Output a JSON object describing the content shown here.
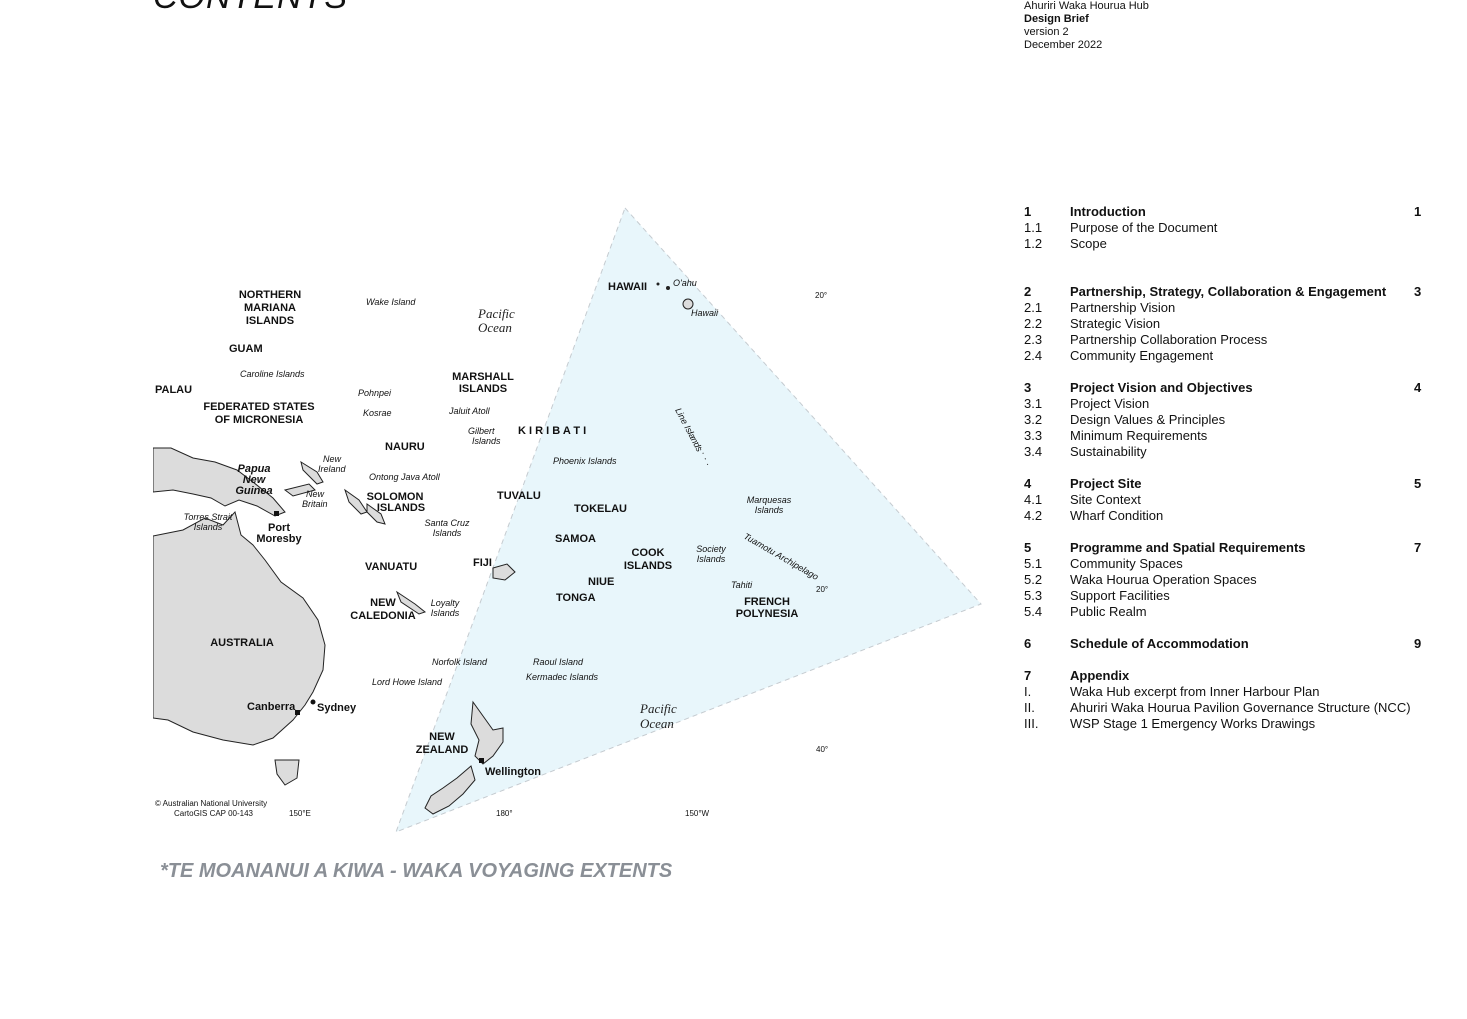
{
  "page": {
    "title": "CONTENTS",
    "caption": "*TE MOANANUI A KIWA - WAKA VOYAGING EXTENTS"
  },
  "doc_meta": {
    "project": "Ahuriri Waka Hourua Hub",
    "doc_type": "Design Brief",
    "version": "version 2",
    "date": "December 2022"
  },
  "toc": {
    "s1": {
      "num": "1",
      "title": "Introduction",
      "page": "1",
      "items": [
        {
          "num": "1.1",
          "label": "Purpose of the Document"
        },
        {
          "num": "1.2",
          "label": "Scope"
        }
      ]
    },
    "s2": {
      "num": "2",
      "title": "Partnership, Strategy, Collaboration & Engagement",
      "page": "3",
      "items": [
        {
          "num": "2.1",
          "label": "Partnership Vision"
        },
        {
          "num": "2.2",
          "label": "Strategic Vision"
        },
        {
          "num": "2.3",
          "label": "Partnership Collaboration Process"
        },
        {
          "num": "2.4",
          "label": "Community Engagement"
        }
      ]
    },
    "s3": {
      "num": "3",
      "title": "Project Vision and Objectives",
      "page": "4",
      "items": [
        {
          "num": "3.1",
          "label": "Project Vision"
        },
        {
          "num": "3.2",
          "label": "Design Values & Principles"
        },
        {
          "num": "3.3",
          "label": "Minimum Requirements"
        },
        {
          "num": "3.4",
          "label": "Sustainability"
        }
      ]
    },
    "s4": {
      "num": "4",
      "title": "Project Site",
      "page": "5",
      "items": [
        {
          "num": "4.1",
          "label": "Site Context"
        },
        {
          "num": "4.2",
          "label": "Wharf Condition"
        }
      ]
    },
    "s5": {
      "num": "5",
      "title": "Programme and Spatial Requirements",
      "page": "7",
      "items": [
        {
          "num": "5.1",
          "label": "Community Spaces"
        },
        {
          "num": "5.2",
          "label": "Waka Hourua Operation Spaces"
        },
        {
          "num": "5.3",
          "label": "Support Facilities"
        },
        {
          "num": "5.4",
          "label": "Public Realm"
        }
      ]
    },
    "s6": {
      "num": "6",
      "title": "Schedule of Accommodation",
      "page": "9",
      "items": []
    },
    "s7": {
      "num": "7",
      "title": "Appendix",
      "page": "",
      "items": [
        {
          "num": "I.",
          "label": "Waka Hub excerpt from Inner Harbour Plan"
        },
        {
          "num": "II.",
          "label": "Ahuriri Waka Hourua Pavilion Governance Structure (NCC)"
        },
        {
          "num": "III.",
          "label": "WSP Stage 1 Emergency Works Drawings"
        }
      ]
    }
  },
  "map": {
    "colors": {
      "triangle": "#e8f6fb",
      "land": "#d9d9d9",
      "outline": "#222222",
      "caption": "#8a8f96"
    },
    "labels": {
      "northern_mariana": [
        "NORTHERN",
        "MARIANA",
        "ISLANDS"
      ],
      "wake_island": "Wake Island",
      "pacific_ocean_n": [
        "Pacific",
        "Ocean"
      ],
      "hawaii_caps": "HAWAII",
      "oahu": "O'ahu",
      "hawaii": "Hawaii",
      "lat_20_n": "20°",
      "guam": "GUAM",
      "caroline_islands": "Caroline Islands",
      "marshall_islands": [
        "MARSHALL",
        "ISLANDS"
      ],
      "palau": "PALAU",
      "pohnpei": "Pohnpei",
      "kosrae": "Kosrae",
      "fsm": [
        "FEDERATED STATES",
        "OF MICRONESIA"
      ],
      "jaluit_atoll": "Jaluit Atoll",
      "gilbert_islands": [
        "Gilbert",
        "Islands"
      ],
      "kiribati": "K I R I B A T I",
      "line_islands": "Line Islands",
      "nauru": "NAURU",
      "new_ireland": [
        "New",
        "Ireland"
      ],
      "png": [
        "Papua",
        "New",
        "Guinea"
      ],
      "ontong_java": "Ontong Java Atoll",
      "phoenix_islands": "Phoenix Islands",
      "new_britain": [
        "New",
        "Britain"
      ],
      "solomon_islands": [
        "SOLOMON",
        "ISLANDS"
      ],
      "tuvalu": "TUVALU",
      "tokelau": "TOKELAU",
      "marquesas": [
        "Marquesas",
        "Islands"
      ],
      "torres_strait": [
        "Torres Strait",
        "Islands"
      ],
      "port_moresby": [
        "Port",
        "Moresby"
      ],
      "santa_cruz": [
        "Santa Cruz",
        "Islands"
      ],
      "samoa": "SAMOA",
      "society_islands": [
        "Society",
        "Islands"
      ],
      "tuamotu": "Tuamotu Archipelago",
      "cook_islands": [
        "COOK",
        "ISLANDS"
      ],
      "vanuatu": "VANUATU",
      "fiji": "FIJI",
      "niue": "NIUE",
      "tahiti": "Tahiti",
      "lat_20_s": "20°",
      "tonga": "TONGA",
      "french_polynesia": [
        "FRENCH",
        "POLYNESIA"
      ],
      "new_caledonia": [
        "NEW",
        "CALEDONIA"
      ],
      "loyalty_islands": [
        "Loyalty",
        "Islands"
      ],
      "australia": "AUSTRALIA",
      "norfolk_island": "Norfolk Island",
      "raoul_island": "Raoul Island",
      "kermadec_islands": "Kermadec Islands",
      "lord_howe": "Lord Howe Island",
      "pacific_ocean_s": [
        "Pacific",
        "Ocean"
      ],
      "canberra": "Canberra",
      "sydney": "Sydney",
      "new_zealand": [
        "NEW",
        "ZEALAND"
      ],
      "wellington": "Wellington",
      "lat_40_s": "40°",
      "credit": [
        "© Australian National University",
        "CartoGIS CAP 00-143"
      ],
      "lon_150e": "150°E",
      "lon_180": "180°",
      "lon_150w": "150°W"
    }
  }
}
